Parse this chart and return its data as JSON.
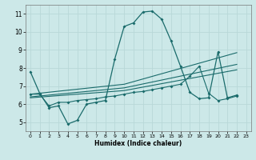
{
  "xlabel": "Humidex (Indice chaleur)",
  "xlim": [
    -0.5,
    23.5
  ],
  "ylim": [
    4.5,
    11.5
  ],
  "xticks": [
    0,
    1,
    2,
    3,
    4,
    5,
    6,
    7,
    8,
    9,
    10,
    11,
    12,
    13,
    14,
    15,
    16,
    17,
    18,
    19,
    20,
    21,
    22,
    23
  ],
  "yticks": [
    5,
    6,
    7,
    8,
    9,
    10,
    11
  ],
  "bg_color": "#cce8e8",
  "grid_color": "#b8d8d8",
  "line_color": "#1a6b6b",
  "curve1_x": [
    0,
    1,
    2,
    3,
    4,
    5,
    6,
    7,
    8,
    9,
    10,
    11,
    12,
    13,
    14,
    15,
    16,
    17,
    18,
    19,
    20,
    21,
    22
  ],
  "curve1_y": [
    7.8,
    6.6,
    5.8,
    5.9,
    4.9,
    5.1,
    6.0,
    6.1,
    6.2,
    8.5,
    10.3,
    10.5,
    11.1,
    11.15,
    10.7,
    9.5,
    8.1,
    6.65,
    6.3,
    6.35,
    8.9,
    6.35,
    6.5
  ],
  "curve2_x": [
    0,
    10,
    22
  ],
  "curve2_y": [
    6.55,
    7.1,
    8.85
  ],
  "curve3_x": [
    0,
    10,
    22
  ],
  "curve3_y": [
    6.4,
    6.9,
    8.2
  ],
  "curve4_x": [
    0,
    10,
    22
  ],
  "curve4_y": [
    6.35,
    6.75,
    7.9
  ],
  "curve5_x": [
    0,
    1,
    2,
    3,
    4,
    5,
    6,
    7,
    8,
    9,
    10,
    11,
    12,
    13,
    14,
    15,
    16,
    17,
    18,
    19,
    20,
    21,
    22
  ],
  "curve5_y": [
    6.55,
    6.55,
    5.9,
    6.1,
    6.1,
    6.2,
    6.25,
    6.3,
    6.4,
    6.45,
    6.55,
    6.65,
    6.7,
    6.8,
    6.9,
    7.0,
    7.1,
    7.55,
    8.1,
    6.6,
    6.2,
    6.3,
    6.45
  ]
}
